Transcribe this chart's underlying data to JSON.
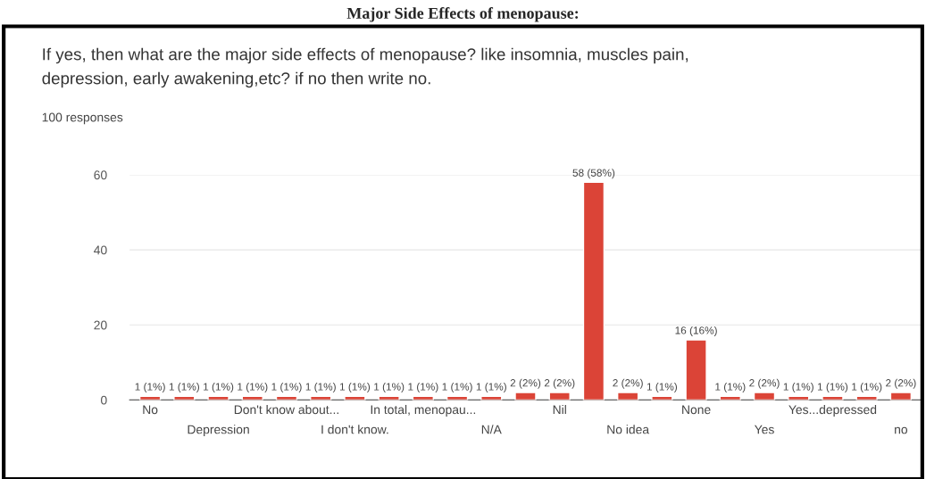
{
  "chart_data": {
    "type": "bar",
    "title": "Major Side Effects of menopause:",
    "subtitle": "If yes, then what are the major side effects of menopause? like insomnia, muscles pain,\ndepression, early awakening,etc? if no then write no.",
    "annotations": [
      "100 responses"
    ],
    "categories": [
      "No",
      null,
      "Depression",
      null,
      "Don't know about...",
      null,
      "I don't know.",
      null,
      "In total, menopau...",
      null,
      "N/A",
      null,
      "Nil",
      null,
      "No idea",
      null,
      "None",
      null,
      "Yes",
      null,
      "Yes...depressed",
      null,
      "no"
    ],
    "values": [
      1,
      1,
      1,
      1,
      1,
      1,
      1,
      1,
      1,
      1,
      1,
      2,
      2,
      58,
      2,
      1,
      16,
      1,
      2,
      1,
      1,
      1,
      2
    ],
    "value_labels": [
      "1 (1%)",
      "1 (1%)",
      "1 (1%)",
      "1 (1%)",
      "1 (1%)",
      "1 (1%)",
      "1 (1%)",
      "1 (1%)",
      "1 (1%)",
      "1 (1%)",
      "1 (1%)",
      "2 (2%)",
      "2 (2%)",
      "58 (58%)",
      "2 (2%)",
      "1 (1%)",
      "16 (16%)",
      "1 (1%)",
      "2 (2%)",
      "1 (1%)",
      "1 (1%)",
      "1 (1%)",
      "2 (2%)"
    ],
    "color": "#db4437",
    "ylim": [
      0,
      60
    ],
    "yticks": [
      0,
      20,
      40,
      60
    ],
    "grid": "y"
  }
}
